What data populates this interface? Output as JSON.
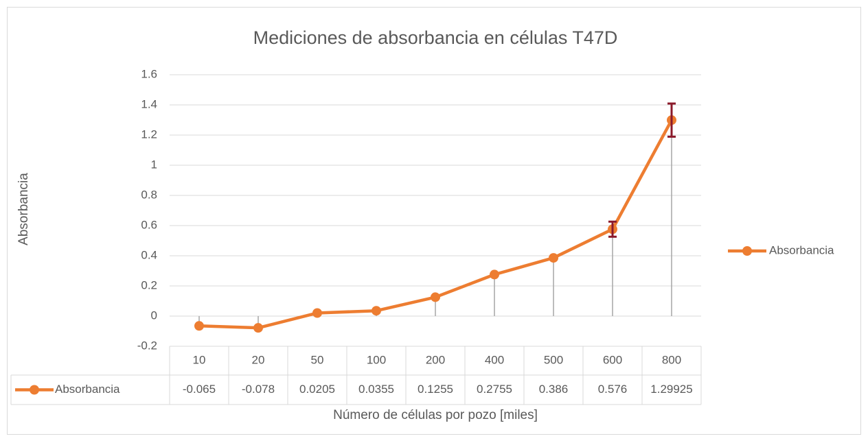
{
  "chart_data": {
    "type": "line",
    "title": "Mediciones de absorbancia en células T47D",
    "x_label": "Número de células por pozo [miles]",
    "y_label": "Absorbancia",
    "categories": [
      "10",
      "20",
      "50",
      "100",
      "200",
      "400",
      "500",
      "600",
      "800"
    ],
    "series": [
      {
        "name": "Absorbancia",
        "color": "#ed7d31",
        "values": [
          -0.065,
          -0.078,
          0.0205,
          0.0355,
          0.1255,
          0.2755,
          0.386,
          0.576,
          1.29925
        ],
        "errors": [
          null,
          null,
          null,
          null,
          null,
          null,
          null,
          0.05,
          0.11
        ],
        "error_color": "#8b1a2b"
      }
    ],
    "ylim": [
      -0.2,
      1.6
    ],
    "yticks": [
      -0.2,
      0,
      0.2,
      0.4,
      0.6,
      0.8,
      1,
      1.2,
      1.4,
      1.6
    ],
    "grid": true,
    "drop_lines": true,
    "data_table": true,
    "legend": "right"
  }
}
